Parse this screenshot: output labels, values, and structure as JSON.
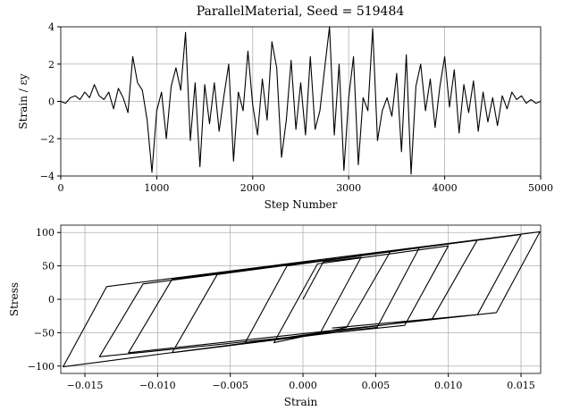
{
  "chart_data": [
    {
      "type": "line",
      "title": "ParallelMaterial, Seed = 519484",
      "x_label": "Step Number",
      "y_label": "Strain / εy",
      "x": [
        0,
        50,
        100,
        150,
        200,
        250,
        300,
        350,
        400,
        450,
        500,
        550,
        600,
        650,
        700,
        750,
        800,
        850,
        900,
        950,
        1000,
        1050,
        1100,
        1150,
        1200,
        1250,
        1300,
        1350,
        1400,
        1450,
        1500,
        1550,
        1600,
        1650,
        1700,
        1750,
        1800,
        1850,
        1900,
        1950,
        2000,
        2050,
        2100,
        2150,
        2200,
        2250,
        2300,
        2350,
        2400,
        2450,
        2500,
        2550,
        2600,
        2650,
        2700,
        2750,
        2800,
        2850,
        2900,
        2950,
        3000,
        3050,
        3100,
        3150,
        3200,
        3250,
        3300,
        3350,
        3400,
        3450,
        3500,
        3550,
        3600,
        3650,
        3700,
        3750,
        3800,
        3850,
        3900,
        3950,
        4000,
        4050,
        4100,
        4150,
        4200,
        4250,
        4300,
        4350,
        4400,
        4450,
        4500,
        4550,
        4600,
        4650,
        4700,
        4750,
        4800,
        4850,
        4900,
        4950,
        5000
      ],
      "values": [
        0,
        -0.1,
        0.2,
        0.3,
        0.1,
        0.5,
        0.2,
        0.9,
        0.3,
        0.1,
        0.5,
        -0.4,
        0.7,
        0.2,
        -0.6,
        2.4,
        1.0,
        0.6,
        -1.0,
        -3.8,
        -0.5,
        0.5,
        -2.0,
        0.8,
        1.8,
        0.6,
        3.7,
        -2.1,
        1.0,
        -3.5,
        0.9,
        -1.2,
        1.0,
        -1.6,
        0.3,
        2.0,
        -3.2,
        0.5,
        -0.5,
        2.7,
        -0.2,
        -1.8,
        1.2,
        -1.0,
        3.2,
        1.8,
        -3.0,
        -1.0,
        2.2,
        -1.5,
        1.0,
        -1.8,
        2.4,
        -1.5,
        -0.5,
        1.8,
        4.0,
        -1.8,
        2.0,
        -3.7,
        0.2,
        2.4,
        -3.4,
        0.2,
        -0.5,
        3.9,
        -2.1,
        -0.5,
        0.2,
        -0.8,
        1.5,
        -2.7,
        2.5,
        -3.9,
        0.8,
        2.0,
        -0.5,
        1.2,
        -1.4,
        0.8,
        2.4,
        -0.3,
        1.7,
        -1.7,
        0.9,
        -0.6,
        1.1,
        -1.6,
        0.5,
        -1.1,
        0.2,
        -1.3,
        0.3,
        -0.4,
        0.5,
        0.1,
        0.3,
        -0.1,
        0.1,
        -0.1,
        0
      ],
      "color": "#000000",
      "grid": true,
      "xlim": [
        0,
        5000
      ],
      "xticks": [
        0,
        1000,
        2000,
        3000,
        4000,
        5000
      ],
      "ylim": [
        -4,
        4
      ],
      "yticks": [
        {
          "value": -4,
          "label": "−4"
        },
        {
          "value": -2,
          "label": "−2"
        },
        0,
        2,
        4
      ]
    },
    {
      "type": "line",
      "x_label": "Strain",
      "y_label": "Stress",
      "x": [
        0,
        0.0014,
        0.004,
        0.0012,
        -0.004,
        -0.0011,
        0.008,
        0.0051,
        -0.009,
        -0.0059,
        0.012,
        0.0089,
        -0.0165,
        -0.0135,
        0.0163,
        0.0133,
        -0.012,
        -0.009,
        0.006,
        0.003,
        -0.002,
        0.001,
        0.01,
        0.007,
        -0.014,
        -0.011,
        0.015,
        0.012,
        0.002
      ],
      "values": [
        0,
        56,
        63,
        -50,
        -66,
        50,
        77,
        -42,
        -80,
        37,
        89,
        -29,
        -101,
        19,
        101,
        -20,
        -80,
        30,
        71,
        -42,
        -65,
        53,
        80,
        -39,
        -86,
        23,
        97,
        -23,
        -43
      ],
      "color": "#000000",
      "grid": true,
      "xlim": [
        -0.01666,
        0.01635
      ],
      "xticks": [
        {
          "value": -0.015,
          "label": "−0.015"
        },
        {
          "value": -0.01,
          "label": "−0.010"
        },
        {
          "value": -0.005,
          "label": "−0.005"
        },
        {
          "value": 0,
          "label": "0.000"
        },
        {
          "value": 0.005,
          "label": "0.005"
        },
        {
          "value": 0.01,
          "label": "0.010"
        },
        {
          "value": 0.015,
          "label": "0.015"
        }
      ],
      "ylim": [
        -111,
        111
      ],
      "yticks": [
        {
          "value": -100,
          "label": "−100"
        },
        {
          "value": -50,
          "label": "−50"
        },
        0,
        50,
        100
      ]
    }
  ]
}
